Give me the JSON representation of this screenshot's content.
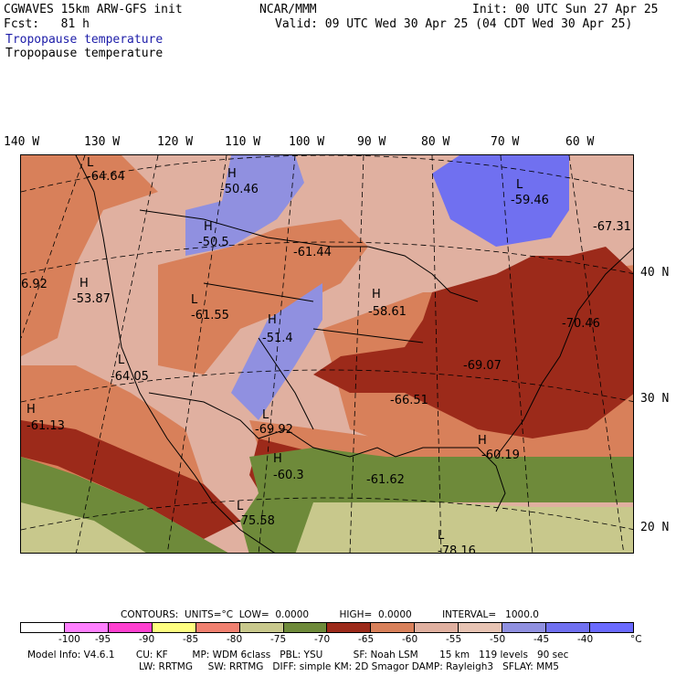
{
  "header": {
    "model": "CGWAVES 15km ARW-GFS init",
    "fcst": "Fcst:   81 h",
    "org": "NCAR/MMM",
    "init": "Init: 00 UTC Sun 27 Apr 25",
    "valid": "Valid: 09 UTC Wed 30 Apr 25 (04 CDT Wed 30 Apr 25)",
    "field1": "Tropopause temperature",
    "field2": "Tropopause temperature"
  },
  "lon_labels": [
    "140 W",
    "130 W",
    "120 W",
    "110 W",
    "100 W",
    "90 W",
    "80 W",
    "70 W",
    "60 W"
  ],
  "lat_labels": [
    "40 N",
    "30 N",
    "20 N"
  ],
  "centers": [
    {
      "letter": "L",
      "value": "-64.64"
    },
    {
      "letter": "H",
      "value": "-50.46"
    },
    {
      "letter": "L",
      "value": "-59.46"
    },
    {
      "letter": "H",
      "value": "-50.5"
    },
    {
      "letter": "",
      "value": "-67.31"
    },
    {
      "letter": "",
      "value": "-61.44"
    },
    {
      "letter": "",
      "value": "6.92"
    },
    {
      "letter": "H",
      "value": "-53.87"
    },
    {
      "letter": "L",
      "value": "-61.55"
    },
    {
      "letter": "H",
      "value": "-58.61"
    },
    {
      "letter": "",
      "value": "-70.46"
    },
    {
      "letter": "H",
      "value": "-51.4"
    },
    {
      "letter": "L",
      "value": "-64.05"
    },
    {
      "letter": "",
      "value": "-69.07"
    },
    {
      "letter": "H",
      "value": "-61.13"
    },
    {
      "letter": "",
      "value": "-66.51"
    },
    {
      "letter": "L",
      "value": "-69.92"
    },
    {
      "letter": "H",
      "value": "-60.19"
    },
    {
      "letter": "H",
      "value": "-60.3"
    },
    {
      "letter": "",
      "value": "-61.62"
    },
    {
      "letter": "L",
      "value": "-75.58"
    },
    {
      "letter": "L",
      "value": "-78.16"
    }
  ],
  "footer": {
    "contours": "CONTOURS:  UNITS=°C  LOW=  0.0000          HIGH=  0.0000          INTERVAL=   1000.0",
    "legend_ticks": [
      "-100",
      "-95",
      "-90",
      "-85",
      "-80",
      "-75",
      "-70",
      "-65",
      "-60",
      "-55",
      "-50",
      "-45",
      "-40",
      "°C"
    ],
    "info1": "Model Info: V4.6.1       CU: KF        MP: WDM 6class   PBL: YSU          SF: Noah LSM       15 km   119 levels   90 sec",
    "info2": "LW: RRTMG     SW: RRTMG   DIFF: simple KM: 2D Smagor DAMP: Rayleigh3   SFLAY: MM5"
  },
  "legend_colors": [
    "#ffffff",
    "#ff80ff",
    "#ff40d0",
    "#ffff80",
    "#f08070",
    "#c8c88c",
    "#6e8a3a",
    "#9c2a1a",
    "#d8805a",
    "#e0b0a0",
    "#e8c4b4",
    "#9090e0",
    "#7070f0",
    "#6a6aff"
  ]
}
